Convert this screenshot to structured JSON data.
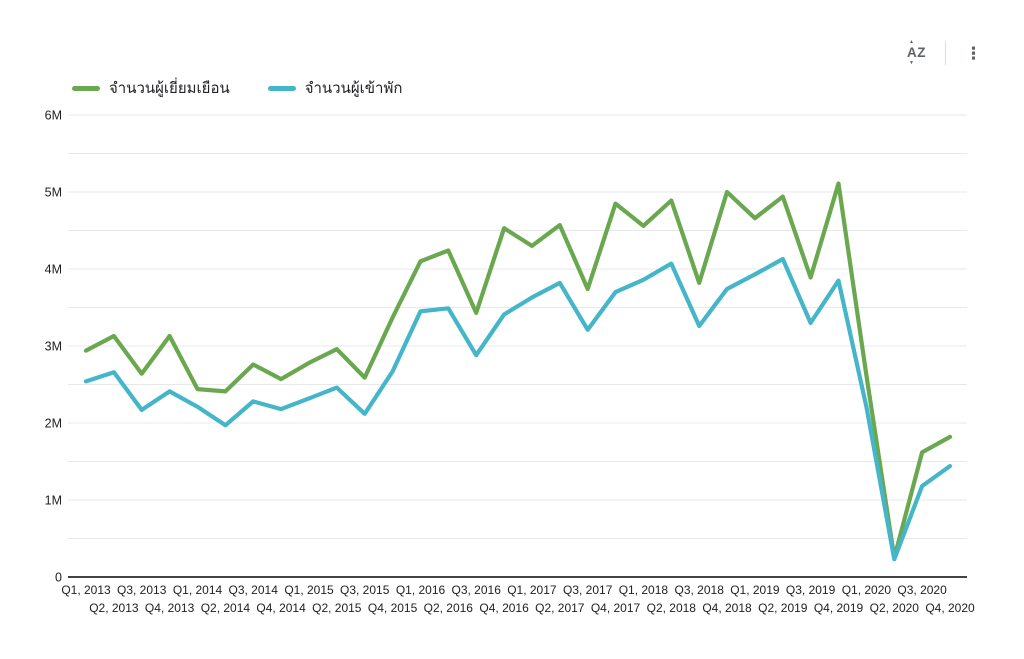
{
  "toolbar": {
    "sort_label": "AZ",
    "sort_arrow_up": "▲",
    "sort_arrow_down": "▼",
    "menu_glyph": "⋮"
  },
  "legend": {
    "items": [
      {
        "label": "จำนวนผู้เยี่ยมเยือน",
        "color": "#6aa84f"
      },
      {
        "label": "จำนวนผู้เข้าพัก",
        "color": "#45b5c9"
      }
    ]
  },
  "chart_data": {
    "type": "line",
    "title": "",
    "xlabel": "",
    "ylabel": "",
    "y_unit": "M (millions)",
    "ylim": [
      0,
      6
    ],
    "y_ticks": [
      "0",
      "1M",
      "2M",
      "3M",
      "4M",
      "5M",
      "6M"
    ],
    "grid": "horizontal lines every 0.5M, light gray; dark baseline at 0",
    "legend_position": "top-left",
    "x_axis_stagger": "two alternating label rows",
    "categories": [
      "Q1, 2013",
      "Q2, 2013",
      "Q3, 2013",
      "Q4, 2013",
      "Q1, 2014",
      "Q2, 2014",
      "Q3, 2014",
      "Q4, 2014",
      "Q1, 2015",
      "Q2, 2015",
      "Q3, 2015",
      "Q4, 2015",
      "Q1, 2016",
      "Q2, 2016",
      "Q3, 2016",
      "Q4, 2016",
      "Q1, 2017",
      "Q2, 2017",
      "Q3, 2017",
      "Q4, 2017",
      "Q1, 2018",
      "Q2, 2018",
      "Q3, 2018",
      "Q4, 2018",
      "Q1, 2019",
      "Q2, 2019",
      "Q3, 2019",
      "Q4, 2019",
      "Q1, 2020",
      "Q2, 2020",
      "Q3, 2020",
      "Q4, 2020"
    ],
    "series": [
      {
        "name": "จำนวนผู้เยี่ยมเยือน",
        "color": "#6aa84f",
        "values": [
          2.94,
          3.13,
          2.64,
          3.13,
          2.44,
          2.41,
          2.76,
          2.57,
          2.78,
          2.96,
          2.59,
          3.37,
          4.1,
          4.24,
          3.43,
          4.53,
          4.3,
          4.57,
          3.74,
          4.85,
          4.56,
          4.89,
          3.82,
          5.0,
          4.66,
          4.94,
          3.89,
          5.11,
          2.62,
          0.25,
          1.62,
          1.82
        ]
      },
      {
        "name": "จำนวนผู้เข้าพัก",
        "color": "#45b5c9",
        "values": [
          2.54,
          2.66,
          2.17,
          2.41,
          2.21,
          1.97,
          2.28,
          2.18,
          2.32,
          2.46,
          2.12,
          2.67,
          3.45,
          3.49,
          2.88,
          3.41,
          3.63,
          3.82,
          3.21,
          3.7,
          3.86,
          4.07,
          3.26,
          3.74,
          3.93,
          4.13,
          3.3,
          3.85,
          2.21,
          0.23,
          1.18,
          1.44
        ]
      }
    ]
  }
}
